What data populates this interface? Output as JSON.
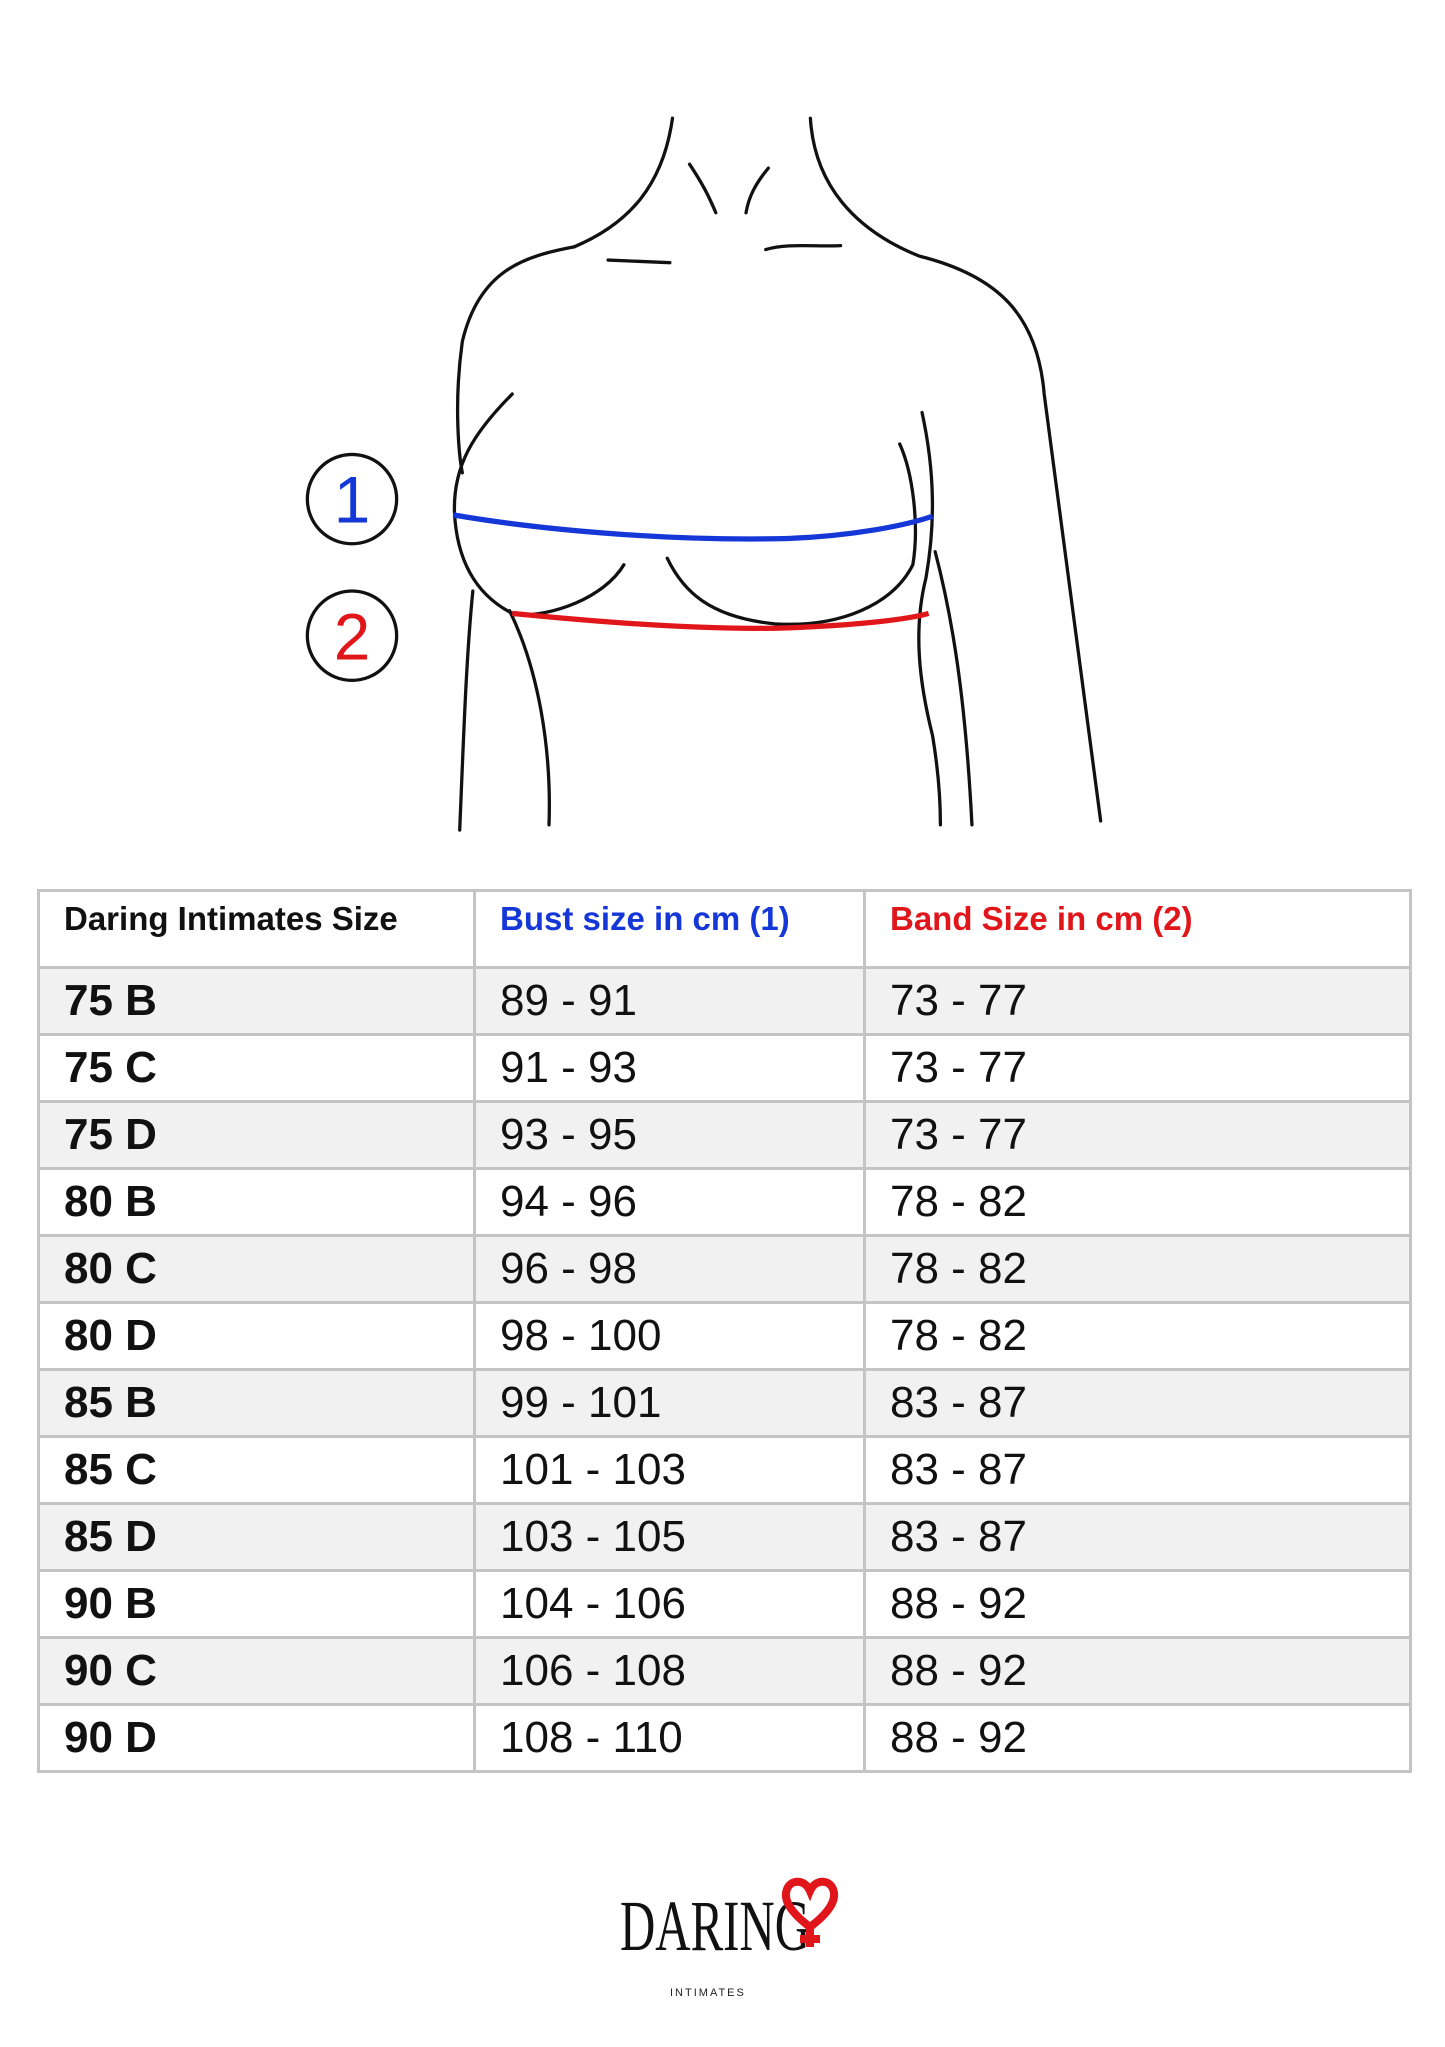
{
  "figure": {
    "marker_1": "1",
    "marker_2": "2",
    "bust_color": "#1537d8",
    "band_color": "#e0161b"
  },
  "table": {
    "headers": [
      "Daring Intimates Size",
      "Bust size in cm (1)",
      "Band Size in cm (2)"
    ],
    "header_colors": [
      "#111111",
      "#1537d8",
      "#e0161b"
    ],
    "rows": [
      [
        "75 B",
        "89 - 91",
        "73 - 77"
      ],
      [
        "75 C",
        "91 - 93",
        "73 - 77"
      ],
      [
        "75 D",
        "93 - 95",
        "73 - 77"
      ],
      [
        "80 B",
        "94 - 96",
        "78 - 82"
      ],
      [
        "80 C",
        "96 - 98",
        "78 - 82"
      ],
      [
        "80 D",
        "98 - 100",
        "78 - 82"
      ],
      [
        "85 B",
        "99 - 101",
        "83 - 87"
      ],
      [
        "85 C",
        "101 - 103",
        "83 - 87"
      ],
      [
        "85 D",
        "103 - 105",
        "83 - 87"
      ],
      [
        "90 B",
        "104 - 106",
        "88 - 92"
      ],
      [
        "90 C",
        "106 - 108",
        "88 - 92"
      ],
      [
        "90 D",
        "108 - 110",
        "88 - 92"
      ]
    ]
  },
  "logo": {
    "brand": "DARING",
    "sub": "INTIMATES",
    "accent": "#e0161b"
  }
}
